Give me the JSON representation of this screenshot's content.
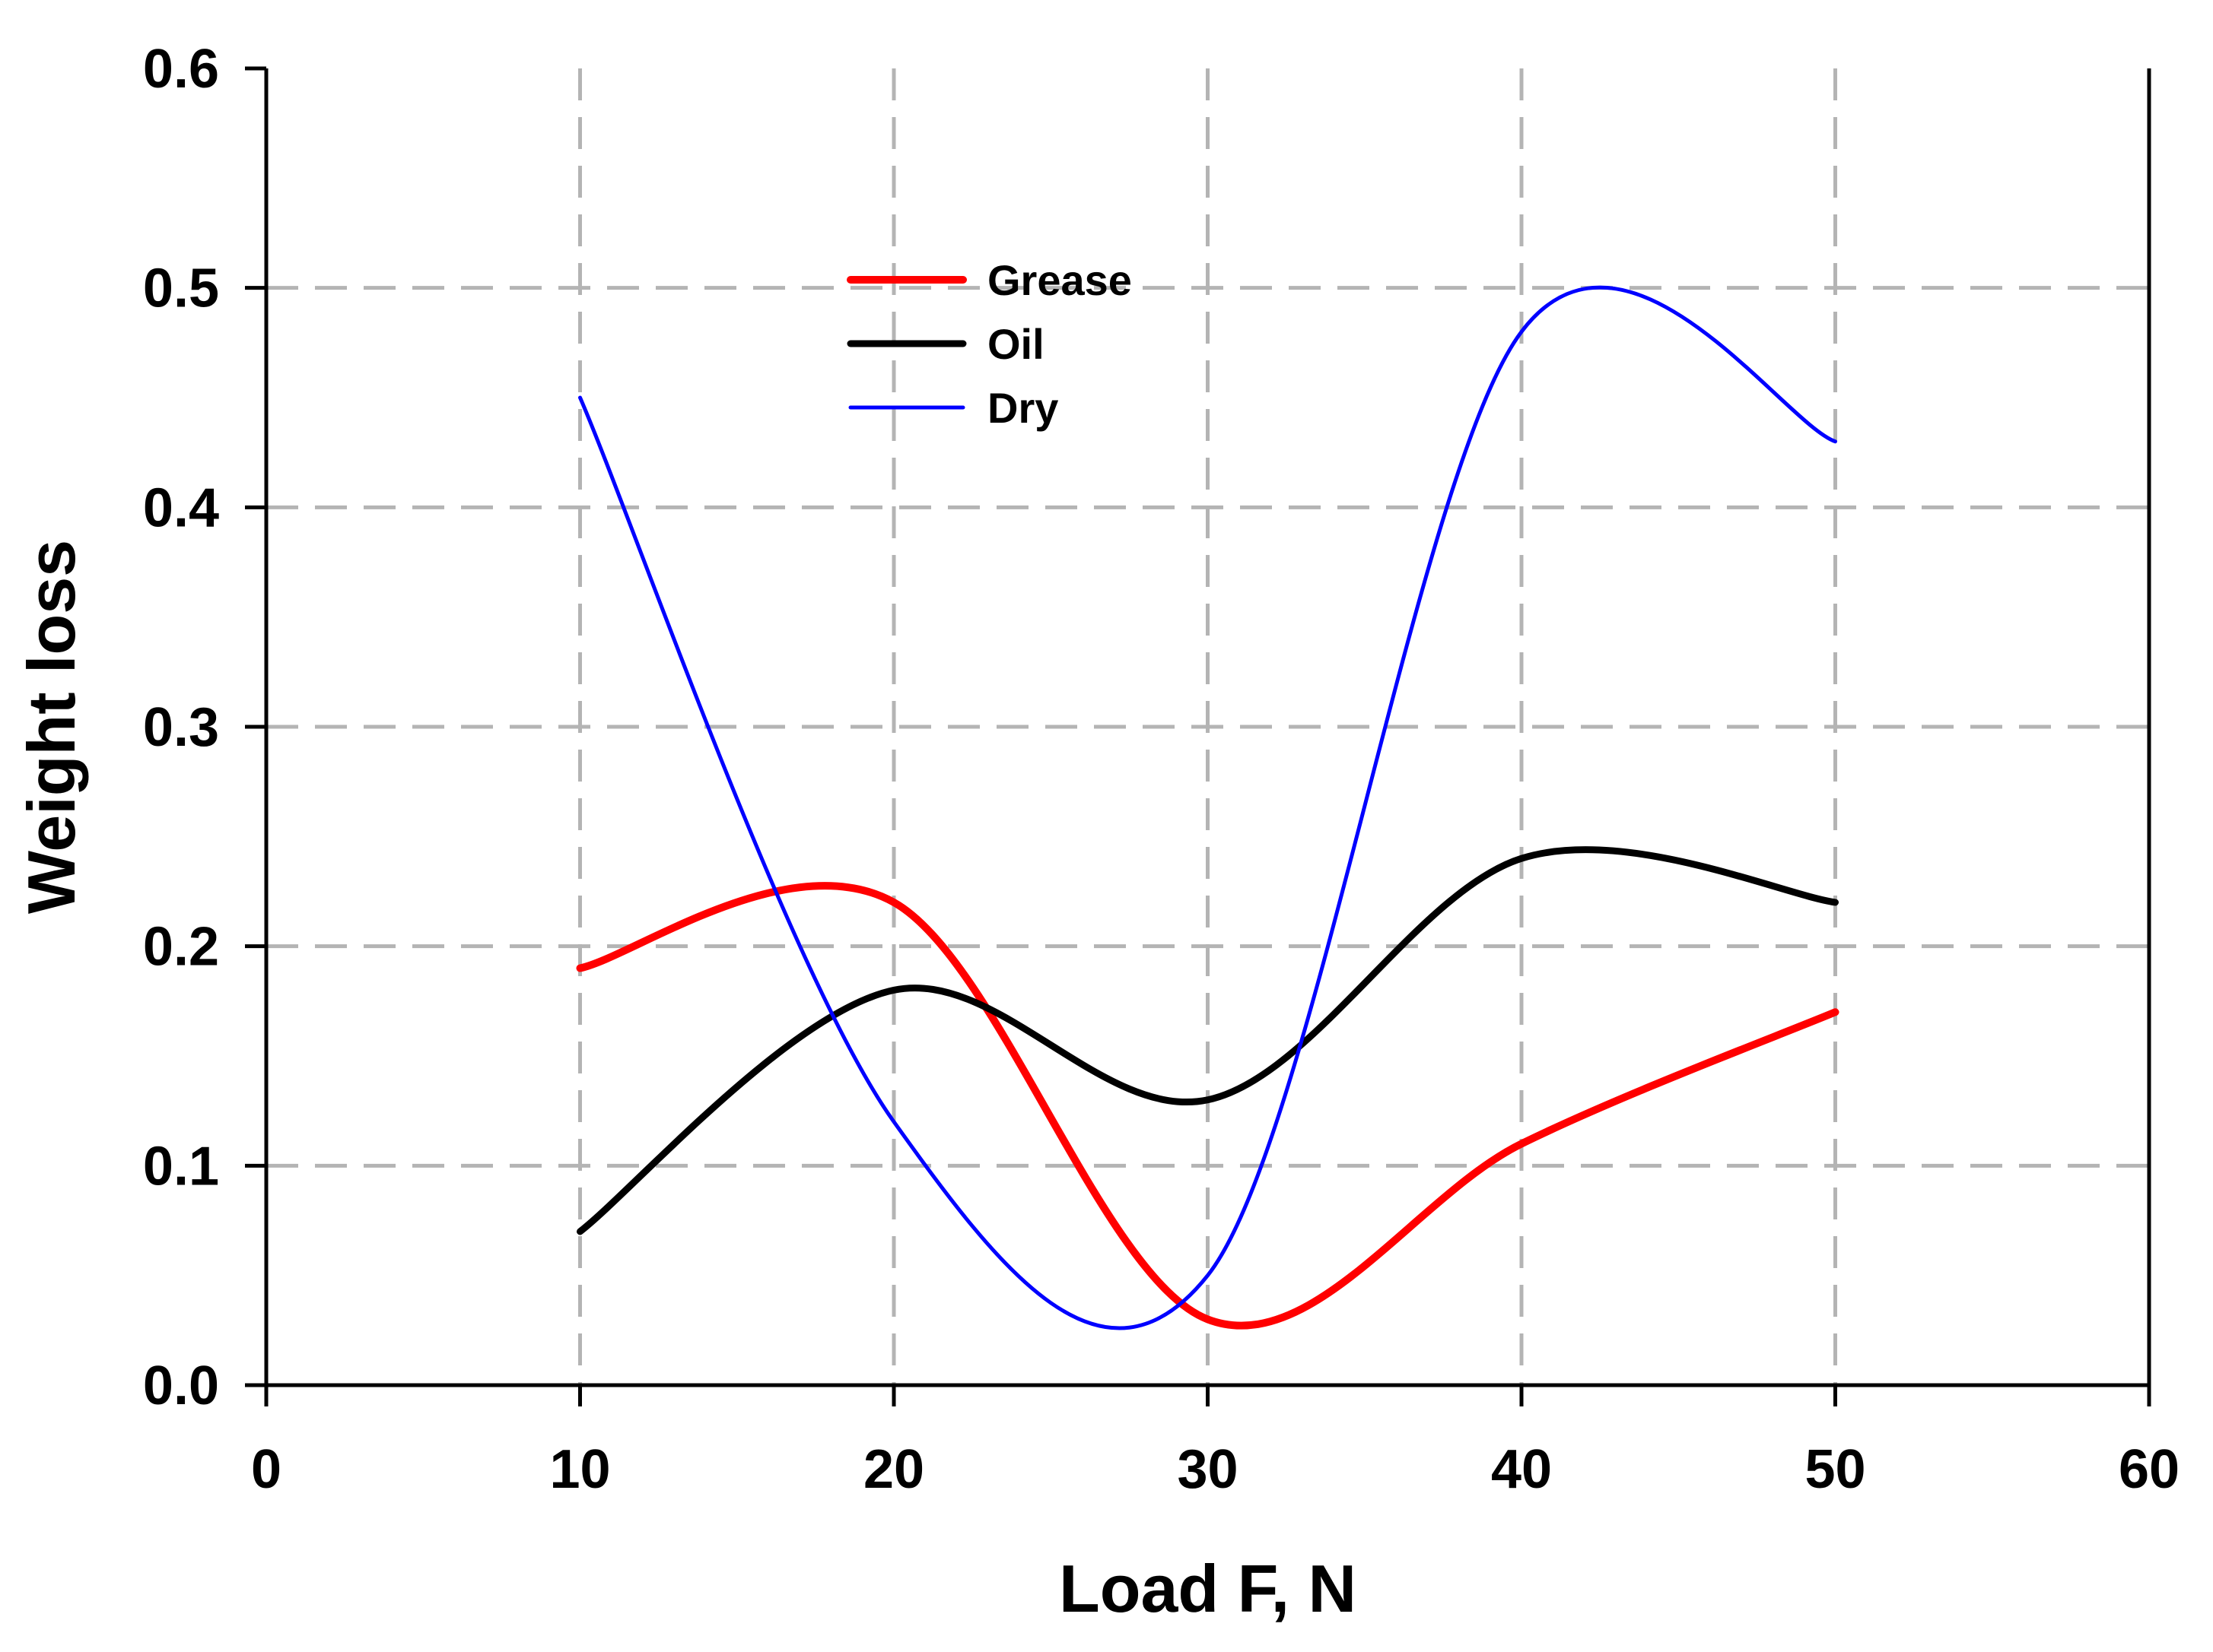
{
  "chart_data": {
    "type": "line",
    "title": "",
    "xlabel": "Load F, N",
    "ylabel": "Weight loss",
    "xlim": [
      0,
      60
    ],
    "ylim": [
      0,
      0.6
    ],
    "x_ticks": [
      0,
      10,
      20,
      30,
      40,
      50,
      60
    ],
    "x_tick_labels": [
      "0",
      "10",
      "20",
      "30",
      "40",
      "50",
      "60"
    ],
    "y_ticks": [
      0,
      0.1,
      0.2,
      0.3,
      0.4,
      0.5,
      0.6
    ],
    "y_tick_labels": [
      "0.0",
      "0.1",
      "0.2",
      "0.3",
      "0.4",
      "0.5",
      "0.6"
    ],
    "grid": true,
    "legend_position": "top-center",
    "x": [
      10,
      20,
      30,
      40,
      50
    ],
    "series": [
      {
        "name": "Grease",
        "values": [
          0.19,
          0.22,
          0.03,
          0.11,
          0.17
        ],
        "color": "#ff0000"
      },
      {
        "name": "Oil",
        "values": [
          0.07,
          0.18,
          0.13,
          0.24,
          0.22
        ],
        "color": "#000000"
      },
      {
        "name": "Dry",
        "values": [
          0.45,
          0.12,
          0.05,
          0.48,
          0.43
        ],
        "color": "#0000ff"
      }
    ]
  }
}
